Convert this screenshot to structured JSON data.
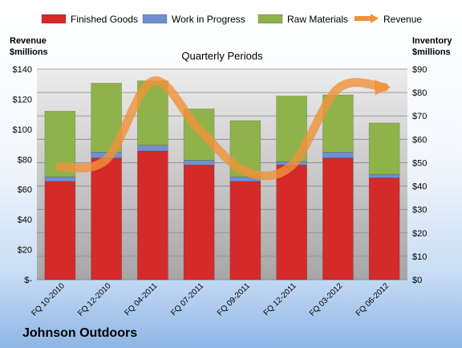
{
  "company": "Johnson Outdoors",
  "chart_data": {
    "type": "bar",
    "stacked": true,
    "title": "Quarterly Periods",
    "ylabel_left": [
      "Revenue",
      "$millions"
    ],
    "ylabel_right": [
      "Inventory",
      "$millions"
    ],
    "categories": [
      "FQ 10-2010",
      "FQ 12-2010",
      "FQ 04-2011",
      "FQ 07-2011",
      "FQ 09-2011",
      "FQ 12-2011",
      "FQ 03-2012",
      "FQ 06-2012"
    ],
    "inventory_axis": {
      "min": 0,
      "max": 90,
      "step": 10,
      "tick_labels": [
        "$0",
        "$10",
        "$20",
        "$30",
        "$40",
        "$50",
        "$60",
        "$70",
        "$80",
        "$90"
      ]
    },
    "revenue_axis": {
      "min": 0,
      "max": 140,
      "step": 20,
      "tick_labels": [
        "$-",
        "$20",
        "$40",
        "$60",
        "$80",
        "$100",
        "$120",
        "$140"
      ]
    },
    "series": [
      {
        "name": "Finished Goods",
        "axis": "inventory",
        "color": "#d42a2a",
        "values": [
          42,
          52,
          55,
          49,
          42,
          49,
          52,
          43.5
        ]
      },
      {
        "name": "Work in Progress",
        "axis": "inventory",
        "color": "#6f8fcf",
        "values": [
          2,
          2.5,
          2.5,
          2,
          2,
          1.5,
          2.5,
          1.5
        ]
      },
      {
        "name": "Raw Materials",
        "axis": "inventory",
        "color": "#8fb34a",
        "values": [
          28,
          29.5,
          27.5,
          22,
          24,
          28,
          24.5,
          22
        ]
      },
      {
        "name": "Revenue",
        "axis": "revenue",
        "type": "line",
        "color": "#f0923a",
        "values": [
          75,
          80,
          132,
          100,
          72,
          76,
          127,
          128
        ]
      }
    ],
    "legend_position": "top",
    "grid": true
  }
}
